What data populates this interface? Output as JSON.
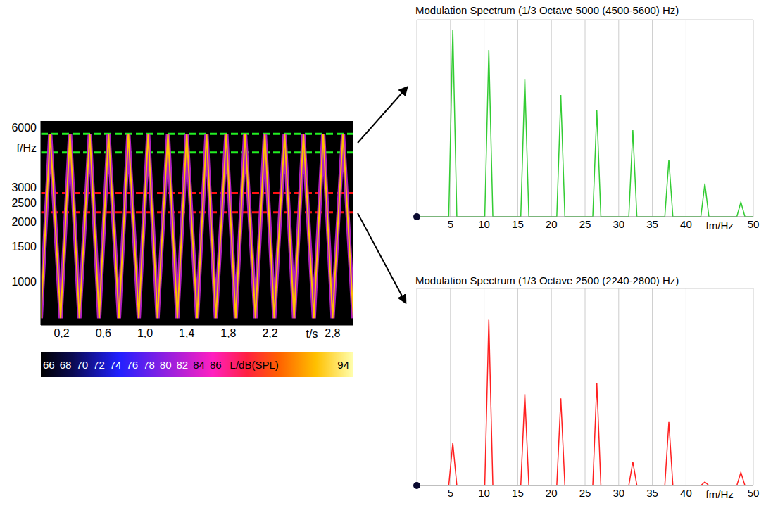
{
  "chart_data": [
    {
      "type": "line",
      "x": [
        0,
        0.09,
        0.19,
        0.28,
        0.37,
        0.47,
        0.56,
        0.65,
        0.75,
        0.84,
        0.94,
        1.03,
        1.12,
        1.22,
        1.31,
        1.4,
        1.5,
        1.59,
        1.68,
        1.78,
        1.87,
        1.96,
        2.06,
        2.15,
        2.24,
        2.34,
        2.43,
        2.52,
        2.62,
        2.71,
        2.8,
        2.9,
        3.0
      ],
      "values": [
        650,
        5600,
        650,
        5600,
        650,
        5600,
        650,
        5600,
        650,
        5600,
        650,
        5600,
        650,
        5600,
        650,
        5600,
        650,
        5600,
        650,
        5600,
        650,
        5600,
        650,
        5600,
        650,
        5600,
        650,
        5600,
        650,
        5600,
        650,
        5600,
        650
      ],
      "color": "#ffc000",
      "xlim": [
        0,
        3
      ],
      "xticks": [
        {
          "value": 0.2,
          "label": "0,2"
        },
        {
          "value": 0.6,
          "label": "0,6"
        },
        {
          "value": 1.0,
          "label": "1,0"
        },
        {
          "value": 1.4,
          "label": "1,4"
        },
        {
          "value": 1.8,
          "label": "1,8"
        },
        {
          "value": 2.2,
          "label": "2,2"
        },
        {
          "value": 2.8,
          "label": "2,8"
        }
      ],
      "x_label": "t/s",
      "ylim": [
        600,
        6500
      ],
      "yticks": [
        1000,
        1500,
        2000,
        2500,
        3000,
        6000
      ],
      "y_label": "f/Hz",
      "log": "y",
      "grid": false,
      "bands": [
        {
          "color": "#22ee22",
          "range": [
            4500,
            5600
          ]
        },
        {
          "color": "#ff1010",
          "range": [
            2240,
            2800
          ]
        }
      ],
      "colorbar": {
        "ticks": [
          66,
          68,
          70,
          72,
          74,
          76,
          78,
          80,
          82,
          84,
          86,
          94
        ],
        "label": "L/dB(SPL)"
      }
    },
    {
      "type": "line",
      "title": "Modulation Spectrum (1/3 Octave 5000 (4500-5600) Hz)",
      "x": [
        0,
        4.75,
        5.35,
        5.95,
        10.1,
        10.7,
        11.3,
        15.45,
        16.05,
        16.65,
        20.8,
        21.4,
        22.0,
        26.15,
        26.75,
        27.35,
        31.5,
        32.1,
        32.7,
        36.85,
        37.45,
        38.05,
        42.2,
        42.8,
        43.4,
        47.55,
        48.15,
        48.75,
        50
      ],
      "values": [
        0,
        0,
        9.5,
        0,
        0,
        8.46,
        0,
        0,
        7.0,
        0,
        0,
        6.18,
        0,
        0,
        5.39,
        0,
        0,
        4.39,
        0,
        0,
        2.89,
        0,
        0,
        1.68,
        0,
        0,
        0.75,
        0,
        0
      ],
      "color": "#33cc33",
      "xlim": [
        0,
        50
      ],
      "xticks": [
        5,
        10,
        15,
        20,
        25,
        30,
        35,
        40,
        50
      ],
      "x_label": "fm/Hz",
      "ylim": [
        0,
        10
      ],
      "yticks": [
        0,
        1,
        2,
        3,
        4,
        5,
        6,
        7,
        8,
        9,
        10
      ],
      "grid": true,
      "tick_labels": "x"
    },
    {
      "type": "line",
      "title": "Modulation Spectrum (1/3 Octave 2500 (2240-2800) Hz)",
      "x": [
        0,
        4.75,
        5.35,
        5.95,
        10.1,
        10.7,
        11.3,
        15.45,
        16.05,
        16.65,
        20.8,
        21.4,
        22.0,
        26.15,
        26.75,
        27.35,
        31.5,
        32.1,
        32.7,
        36.85,
        37.45,
        38.05,
        42.2,
        42.8,
        43.4,
        47.55,
        48.15,
        48.75,
        50
      ],
      "values": [
        0,
        0,
        2.16,
        0,
        0,
        8.41,
        0,
        0,
        4.63,
        0,
        0,
        4.42,
        0,
        0,
        5.19,
        0,
        0,
        1.2,
        0,
        0,
        3.22,
        0,
        0,
        0.18,
        0,
        0,
        0.67,
        0,
        0
      ],
      "color": "#ff2020",
      "xlim": [
        0,
        50
      ],
      "xticks": [
        5,
        10,
        15,
        20,
        25,
        30,
        35,
        40,
        50
      ],
      "x_label": "fm/Hz",
      "ylim": [
        0,
        10
      ],
      "yticks": [
        0,
        1,
        2,
        3,
        4,
        5,
        6,
        7,
        8,
        9,
        10
      ],
      "grid": true,
      "tick_labels": "x"
    }
  ]
}
